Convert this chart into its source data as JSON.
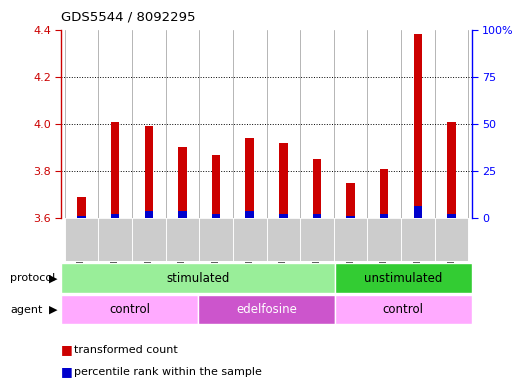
{
  "title": "GDS5544 / 8092295",
  "samples": [
    "GSM1084272",
    "GSM1084273",
    "GSM1084274",
    "GSM1084275",
    "GSM1084276",
    "GSM1084277",
    "GSM1084278",
    "GSM1084279",
    "GSM1084260",
    "GSM1084261",
    "GSM1084262",
    "GSM1084263"
  ],
  "red_values": [
    3.69,
    4.01,
    3.99,
    3.9,
    3.87,
    3.94,
    3.92,
    3.85,
    3.75,
    3.81,
    4.38,
    4.01
  ],
  "blue_values": [
    3.61,
    3.62,
    3.63,
    3.63,
    3.62,
    3.63,
    3.62,
    3.62,
    3.61,
    3.62,
    3.65,
    3.62
  ],
  "y_min": 3.6,
  "y_max": 4.4,
  "y_ticks_left": [
    3.6,
    3.8,
    4.0,
    4.2,
    4.4
  ],
  "y_ticks_right_vals": [
    0,
    25,
    50,
    75,
    100
  ],
  "y_ticks_right_labels": [
    "0",
    "25",
    "50",
    "75",
    "100%"
  ],
  "red_color": "#cc0000",
  "blue_color": "#0000cc",
  "tick_bg_color": "#cccccc",
  "stimulated_color": "#99ee99",
  "unstimulated_color": "#33cc33",
  "agent_control_color": "#ffaaff",
  "agent_edelfosine_color": "#cc55cc",
  "legend_red": "transformed count",
  "legend_blue": "percentile rank within the sample",
  "red_bar_width": 0.25,
  "blue_bar_width": 0.25
}
